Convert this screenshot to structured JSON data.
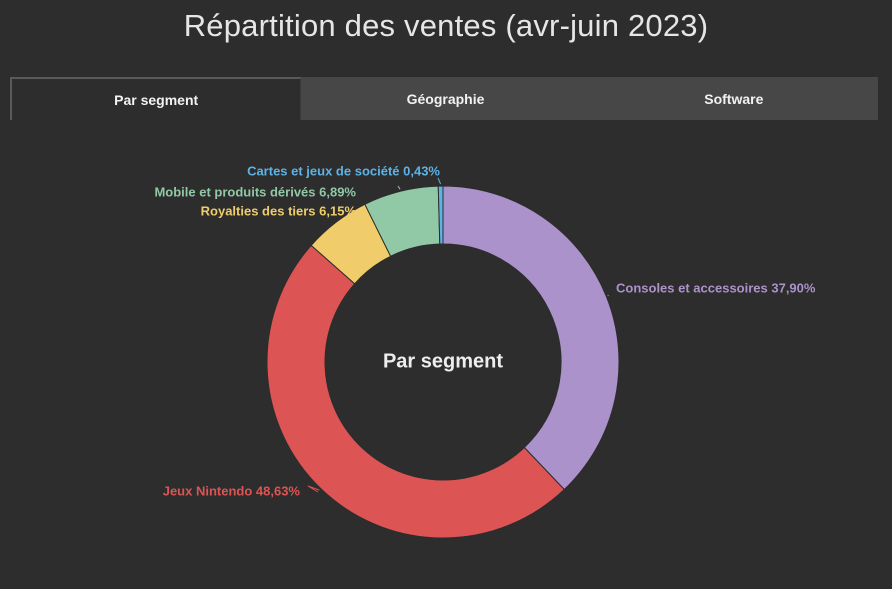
{
  "title": "Répartition des ventes (avr-juin 2023)",
  "tabs": [
    {
      "label": "Par segment",
      "active": true
    },
    {
      "label": "Géographie",
      "active": false
    },
    {
      "label": "Software",
      "active": false
    }
  ],
  "chart_data": {
    "type": "pie",
    "center_label": "Par segment",
    "series": [
      {
        "name": "Consoles et accessoires",
        "value": 37.9,
        "label": "Consoles et accessoires 37,90%",
        "color": "#ab92cb"
      },
      {
        "name": "Jeux Nintendo",
        "value": 48.63,
        "label": "Jeux Nintendo 48,63%",
        "color": "#dc5454"
      },
      {
        "name": "Royalties des tiers",
        "value": 6.15,
        "label": "Royalties des tiers 6,15%",
        "color": "#f0cd6a"
      },
      {
        "name": "Mobile et produits dérivés",
        "value": 6.89,
        "label": "Mobile et produits dérivés 6,89%",
        "color": "#91c8a6"
      },
      {
        "name": "Cartes et jeux de société",
        "value": 0.43,
        "label": "Cartes et jeux de société 0,43%",
        "color": "#5db2e6"
      }
    ]
  }
}
